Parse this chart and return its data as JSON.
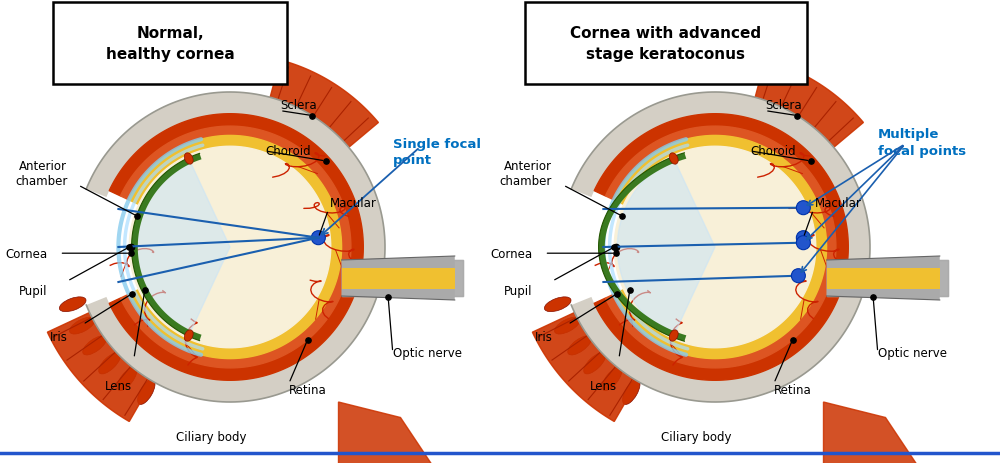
{
  "title_left": "Normal,\nhealthy cornea",
  "title_right": "Cornea with advanced\nstage keratoconus",
  "focal_label_left": "Single focal\npoint",
  "focal_label_right": "Multiple\nfocal points",
  "bg_color": "#ffffff",
  "label_color_black": "#000000",
  "label_color_blue": "#0070c0",
  "line_color_blue": "#1a6faf",
  "sclera_color": "#d4cfc5",
  "choroid_color": "#cc3300",
  "choroid2_color": "#dd5522",
  "retina_color": "#f0c030",
  "vitreous_color": "#f8f0d8",
  "cornea_color": "#3a7a20",
  "cornea_edge": "#aad4ff",
  "iris_color": "#3a7a20",
  "muscle_color": "#cc3300",
  "nerve_yellow": "#f0c030",
  "nerve_grey": "#aaaaaa"
}
